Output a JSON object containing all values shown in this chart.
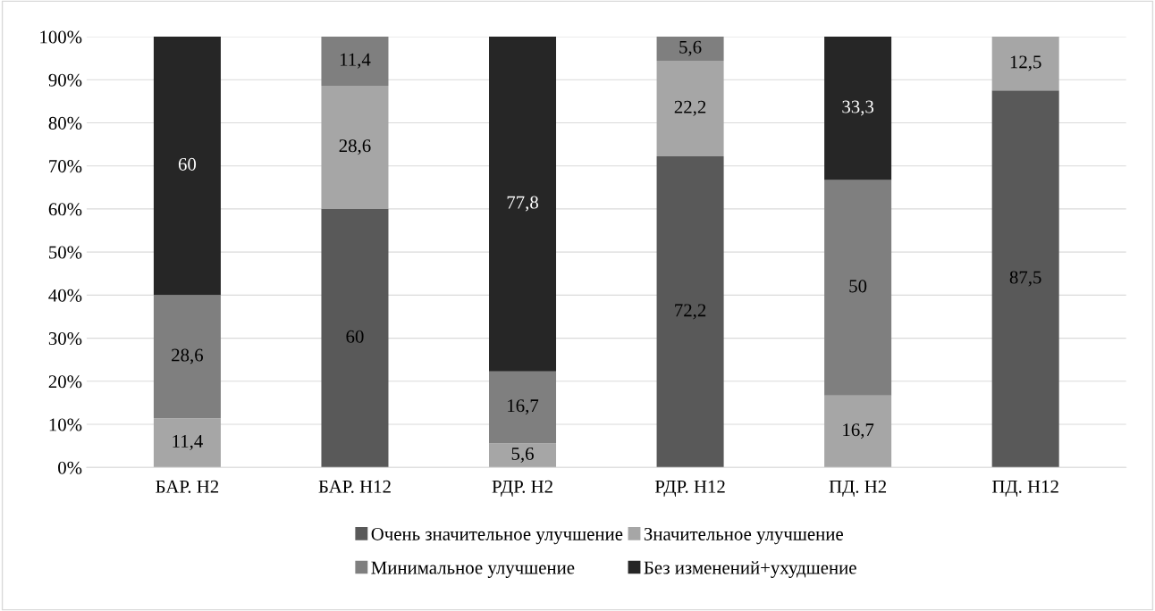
{
  "chart_data": {
    "type": "bar",
    "stacked": true,
    "categories": [
      "БАР. Н2",
      "БАР. Н12",
      "РДР. Н2",
      "РДР. Н12",
      "ПД. Н2",
      "ПД. Н12"
    ],
    "series": [
      {
        "name": "Очень значительное улучшение",
        "color": "#595959",
        "values": [
          0,
          60,
          0,
          72.2,
          0,
          87.5
        ],
        "value_labels": [
          null,
          "60",
          null,
          "72,2",
          null,
          "87,5"
        ]
      },
      {
        "name": "Значительное улучшение",
        "color": "#a6a6a6",
        "values": [
          11.4,
          28.6,
          5.6,
          22.2,
          16.7,
          12.5
        ],
        "value_labels": [
          "11,4",
          "28,6",
          "5,6",
          "22,2",
          "16,7",
          "12,5"
        ]
      },
      {
        "name": "Минимальное улучшение",
        "color": "#7f7f7f",
        "values": [
          28.6,
          11.4,
          16.7,
          5.6,
          50,
          0
        ],
        "value_labels": [
          "28,6",
          "11,4",
          "16,7",
          "5,6",
          "50",
          null
        ]
      },
      {
        "name": "Без изменений+ухудшение",
        "color": "#262626",
        "values": [
          60,
          0,
          77.8,
          0,
          33.3,
          0
        ],
        "value_labels": [
          "60",
          null,
          "77,8",
          null,
          "33,3",
          null
        ]
      }
    ],
    "ylim": [
      0,
      100
    ],
    "yticks": [
      {
        "value": 0,
        "label": "0%"
      },
      {
        "value": 10,
        "label": "10%"
      },
      {
        "value": 20,
        "label": "20%"
      },
      {
        "value": 30,
        "label": "30%"
      },
      {
        "value": 40,
        "label": "40%"
      },
      {
        "value": 50,
        "label": "50%"
      },
      {
        "value": 60,
        "label": "60%"
      },
      {
        "value": 70,
        "label": "70%"
      },
      {
        "value": 80,
        "label": "80%"
      },
      {
        "value": 90,
        "label": "90%"
      },
      {
        "value": 100,
        "label": "100%"
      }
    ],
    "grid": "y",
    "legend": "bottom"
  }
}
